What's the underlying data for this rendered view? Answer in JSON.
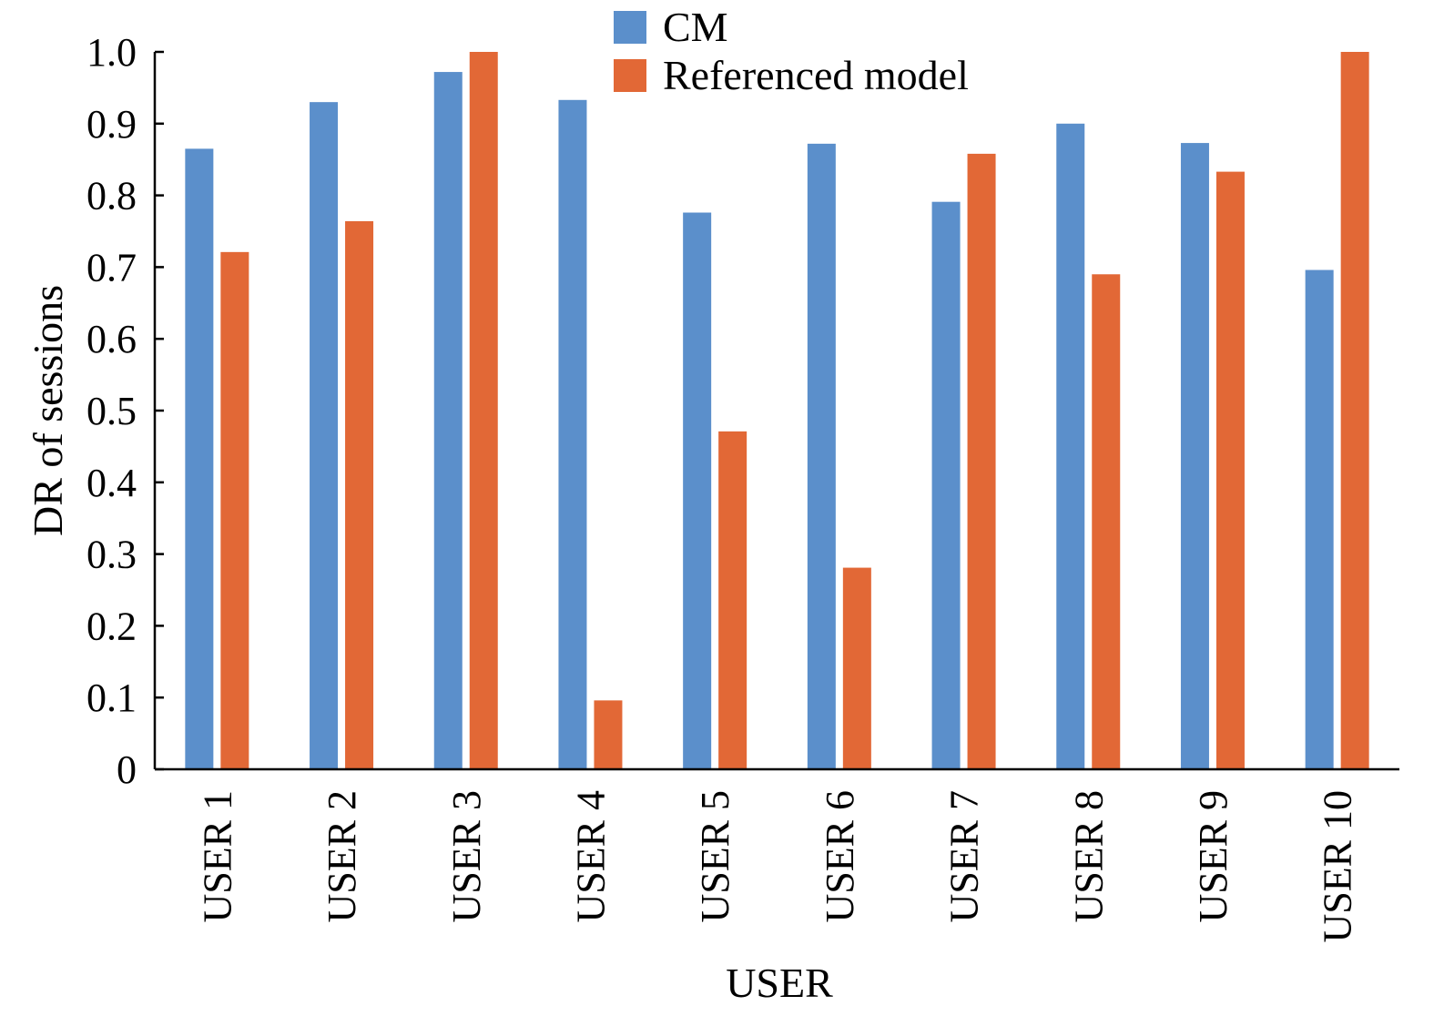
{
  "chart_data": {
    "type": "bar",
    "title": "",
    "xlabel": "USER",
    "ylabel": "DR of sessions",
    "ylim": [
      0,
      1.0
    ],
    "yticks": [
      "0",
      "0.1",
      "0.2",
      "0.3",
      "0.4",
      "0.5",
      "0.6",
      "0.7",
      "0.8",
      "0.9",
      "1.0"
    ],
    "ytick_values": [
      0,
      0.1,
      0.2,
      0.3,
      0.4,
      0.5,
      0.6,
      0.7,
      0.8,
      0.9,
      1.0
    ],
    "categories": [
      "USER 1",
      "USER 2",
      "USER 3",
      "USER 4",
      "USER 5",
      "USER 6",
      "USER 7",
      "USER 8",
      "USER 9",
      "USER 10"
    ],
    "series": [
      {
        "name": "CM",
        "color": "#5b8fcb",
        "values": [
          0.865,
          0.93,
          0.972,
          0.933,
          0.776,
          0.872,
          0.791,
          0.9,
          0.873,
          0.696
        ]
      },
      {
        "name": "Referenced model",
        "color": "#e26836",
        "values": [
          0.721,
          0.764,
          1.0,
          0.096,
          0.471,
          0.281,
          0.858,
          0.69,
          0.833,
          1.0
        ]
      }
    ],
    "grid": false,
    "legend_position": "top-center"
  }
}
